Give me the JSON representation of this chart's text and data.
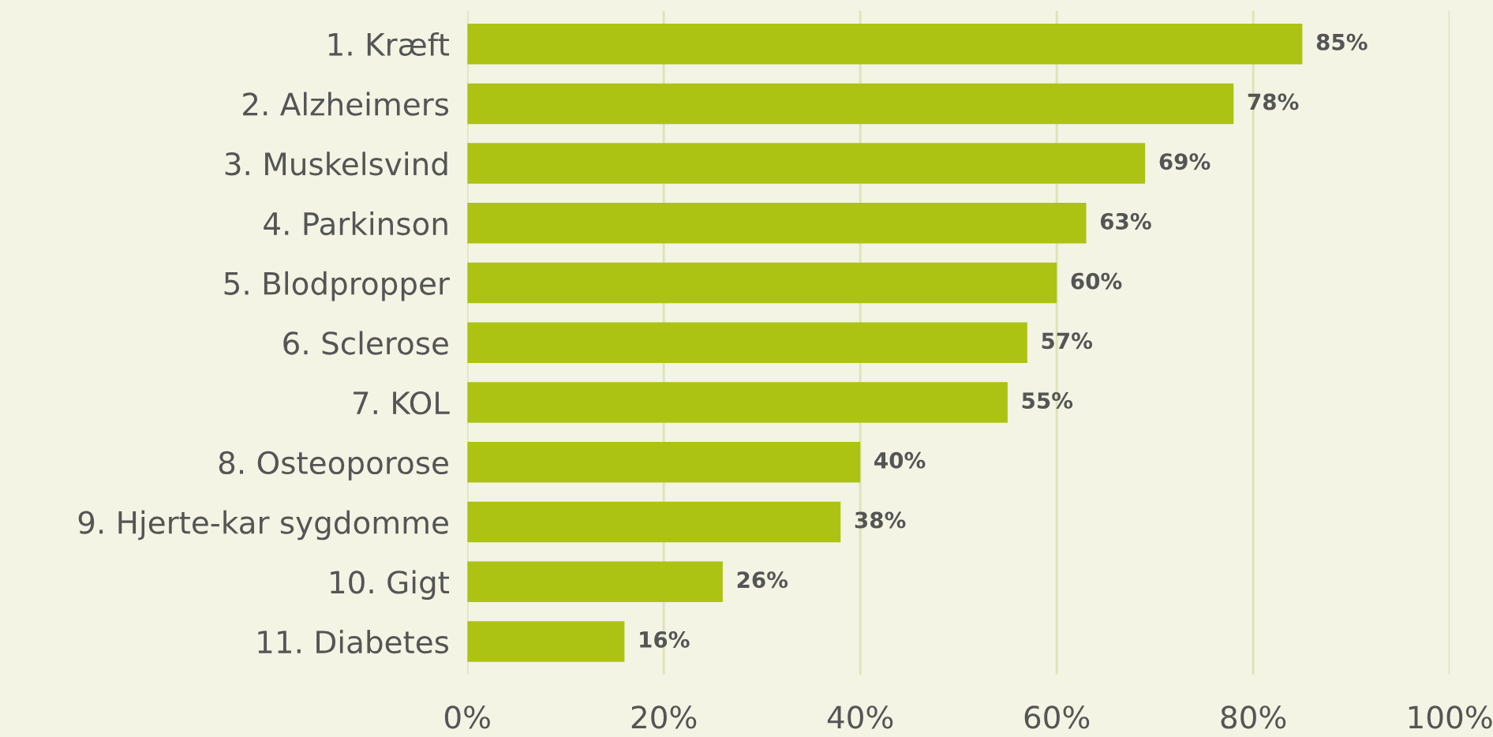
{
  "chart_data": {
    "type": "bar",
    "orientation": "horizontal",
    "categories": [
      "1. Kræft",
      "2. Alzheimers",
      "3. Muskelsvind",
      "4. Parkinson",
      "5. Blodpropper",
      "6. Sclerose",
      "7. KOL",
      "8. Osteoporose",
      "9. Hjerte-kar sygdomme",
      "10. Gigt",
      "11. Diabetes"
    ],
    "values": [
      85,
      78,
      69,
      63,
      60,
      57,
      55,
      40,
      38,
      26,
      16
    ],
    "value_labels": [
      "85%",
      "78%",
      "69%",
      "63%",
      "60%",
      "57%",
      "55%",
      "40%",
      "38%",
      "26%",
      "16%"
    ],
    "color": "#adc313",
    "xlim": [
      0,
      100
    ],
    "xticks": [
      {
        "value": 0,
        "label": "0%"
      },
      {
        "value": 20,
        "label": "20%"
      },
      {
        "value": 40,
        "label": "40%"
      },
      {
        "value": 60,
        "label": "60%"
      },
      {
        "value": 80,
        "label": "80%"
      },
      {
        "value": 100,
        "label": "100%"
      }
    ],
    "grid": "x"
  }
}
